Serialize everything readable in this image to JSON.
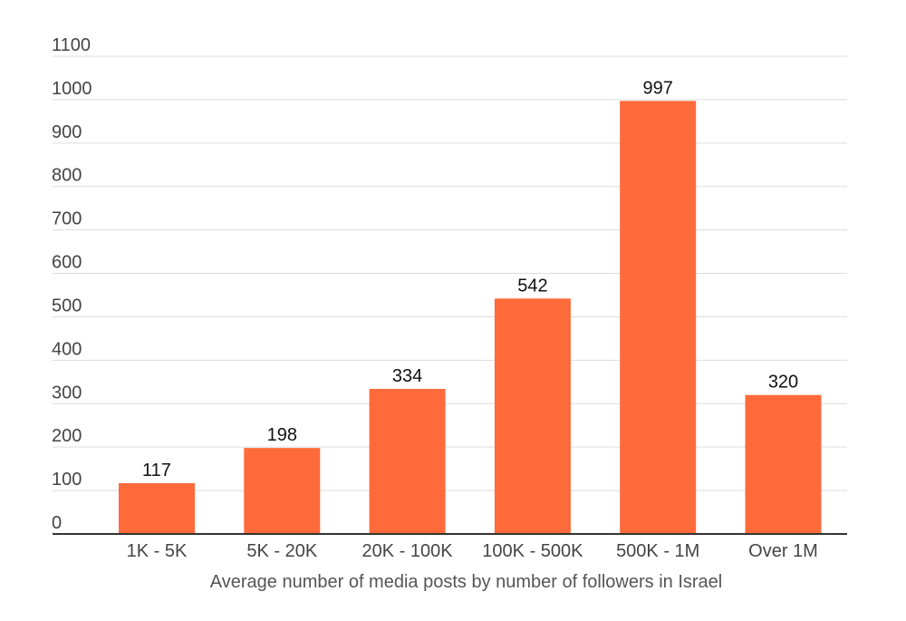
{
  "chart_data": {
    "type": "bar",
    "title": "",
    "xlabel": "Average number of media posts by number of followers in Israel",
    "ylabel": "",
    "categories": [
      "1K - 5K",
      "5K - 20K",
      "20K - 100K",
      "100K - 500K",
      "500K - 1M",
      "Over 1M"
    ],
    "values": [
      117,
      198,
      334,
      542,
      997,
      320
    ],
    "data_labels": [
      "117",
      "198",
      "334",
      "542",
      "997",
      "320"
    ],
    "ylim": [
      0,
      1100
    ],
    "yticks": [
      0,
      100,
      200,
      300,
      400,
      500,
      600,
      700,
      800,
      900,
      1000,
      1100
    ],
    "ytick_labels": [
      "0",
      "100",
      "200",
      "300",
      "400",
      "500",
      "600",
      "700",
      "800",
      "900",
      "1000",
      "1100"
    ],
    "grid": true,
    "legend": "none",
    "colors": {
      "bar": "#FF6A3A",
      "grid": "#DDDDDD",
      "axis": "#333333",
      "tick_text": "#444444",
      "label_text": "#111111",
      "caption_text": "#555555"
    }
  }
}
